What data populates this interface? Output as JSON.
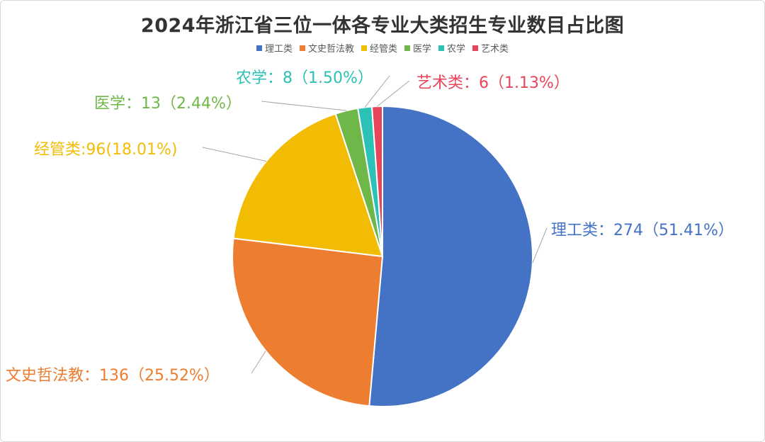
{
  "chart_data": {
    "type": "pie",
    "title": "2024年浙江省三位一体各专业大类招生专业数目占比图",
    "legend_position": "top",
    "series": [
      {
        "name": "理工类",
        "value": 274,
        "color": "#4472C4",
        "label": "理工类：274（51.41%）"
      },
      {
        "name": "文史哲法教",
        "value": 136,
        "color": "#ED7D31",
        "label": "文史哲法教：136（25.52%）"
      },
      {
        "name": "经管类",
        "value": 96,
        "color": "#F2BC05",
        "label": "经管类:96(18.01%)"
      },
      {
        "name": "医学",
        "value": 13,
        "color": "#70B749",
        "label": "医学：13（2.44%）"
      },
      {
        "name": "农学",
        "value": 8,
        "color": "#2BC1B6",
        "label": "农学：8（1.50%）"
      },
      {
        "name": "艺术类",
        "value": 6,
        "color": "#E8445A",
        "label": "艺术类：6（1.13%）"
      }
    ]
  }
}
